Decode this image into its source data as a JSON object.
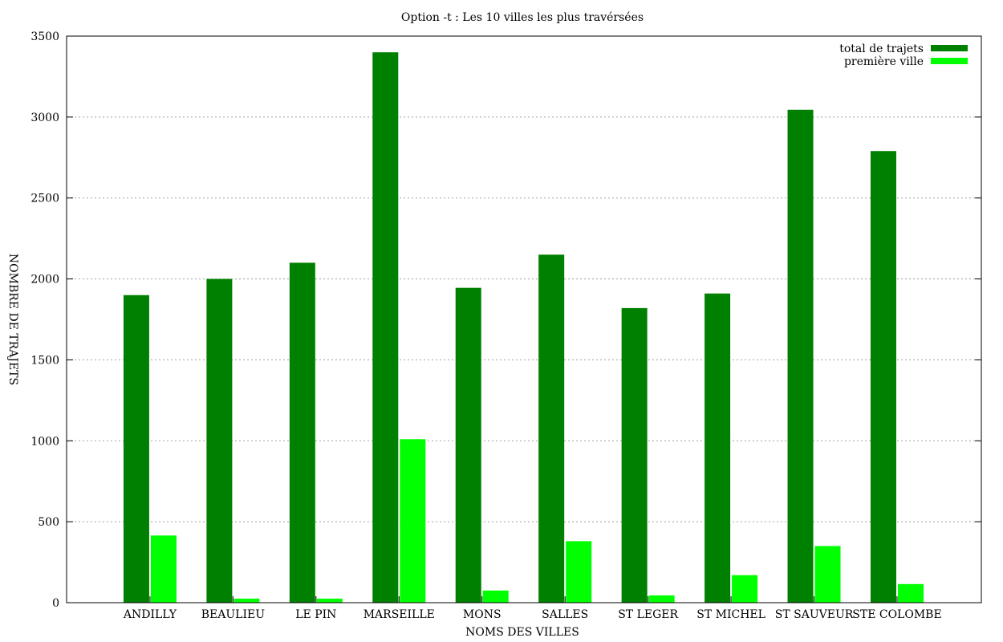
{
  "chart_data": {
    "type": "bar",
    "title": "Option -t : Les 10 villes les plus travérsées",
    "xlabel": "NOMS DES VILLES",
    "ylabel": "NOMBRE DE TRAJETS",
    "ylim": [
      0,
      3500
    ],
    "yticks": [
      0,
      500,
      1000,
      1500,
      2000,
      2500,
      3000,
      3500
    ],
    "grid": true,
    "legend_position": "top-right",
    "categories": [
      "ANDILLY",
      "BEAULIEU",
      "LE PIN",
      "MARSEILLE",
      "MONS",
      "SALLES",
      "ST LEGER",
      "ST MICHEL",
      "ST SAUVEUR",
      "STE COLOMBE"
    ],
    "series": [
      {
        "name": "total de trajets",
        "color": "#008000",
        "values": [
          1900,
          2000,
          2100,
          3400,
          1945,
          2150,
          1820,
          1910,
          3045,
          2790
        ]
      },
      {
        "name": "première ville",
        "color": "#00ff00",
        "values": [
          415,
          25,
          25,
          1010,
          75,
          380,
          45,
          170,
          350,
          115
        ]
      }
    ]
  }
}
